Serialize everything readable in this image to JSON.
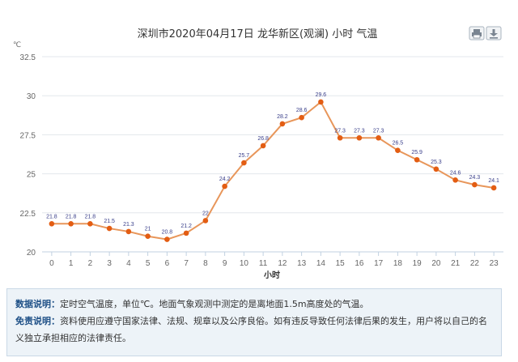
{
  "chart_data": {
    "type": "line",
    "title": "深圳市2020年04月17日 龙华新区(观澜) 小时 气温",
    "y_unit": "℃",
    "xlabel": "小时",
    "ylim": [
      20,
      32.5
    ],
    "yticks": [
      20,
      22.5,
      25,
      27.5,
      30,
      32.5
    ],
    "categories": [
      "0",
      "1",
      "2",
      "3",
      "4",
      "5",
      "6",
      "7",
      "8",
      "9",
      "10",
      "11",
      "12",
      "13",
      "14",
      "15",
      "16",
      "17",
      "18",
      "19",
      "20",
      "21",
      "22",
      "23"
    ],
    "values": [
      21.8,
      21.8,
      21.8,
      21.5,
      21.3,
      21,
      20.8,
      21.2,
      22,
      24.2,
      25.7,
      26.8,
      28.2,
      28.6,
      29.6,
      27.3,
      27.3,
      27.3,
      26.5,
      25.9,
      25.3,
      24.6,
      24.3,
      24.1
    ],
    "data_labels": [
      "21.8",
      "21.8",
      "21.8",
      "21.5",
      "21.3",
      "21",
      "20.8",
      "21.2",
      "22",
      "24.2",
      "25.7",
      "26.8",
      "28.2",
      "28.6",
      "29.6",
      "27.3",
      "27.3",
      "27.3",
      "26.5",
      "25.9",
      "25.3",
      "24.6",
      "24.3",
      "24.1"
    ],
    "grid": true,
    "legend": "none",
    "line_color": "#e8965a",
    "marker_color": "#e35d13"
  },
  "toolbar": {
    "print_icon": "printer-icon",
    "download_icon": "download-icon"
  },
  "notes": {
    "data_label": "数据说明：",
    "data_text": "定时空气温度，单位℃。地面气象观测中测定的是离地面1.5m高度处的气温。",
    "disclaimer_label": "免责说明：",
    "disclaimer_text": "资料使用应遵守国家法律、法规、规章以及公序良俗。如有违反导致任何法律后果的发生，用户将以自己的名义独立承担相应的法律责任。"
  }
}
